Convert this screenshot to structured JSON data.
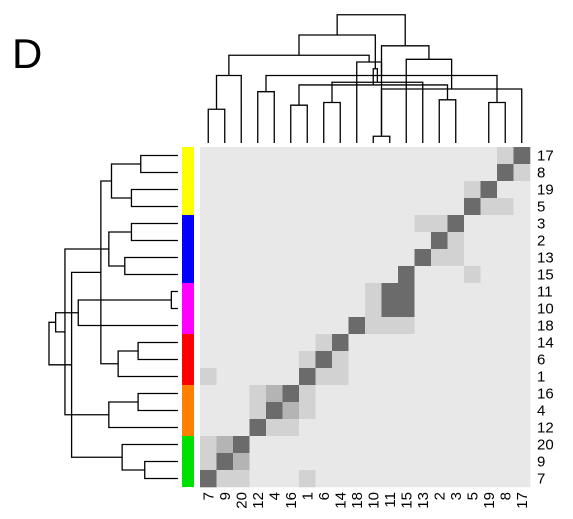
{
  "panel_label": "D",
  "chart_data": {
    "type": "heatmap",
    "title": "",
    "row_labels": [
      "17",
      "8",
      "19",
      "5",
      "3",
      "2",
      "13",
      "15",
      "11",
      "10",
      "18",
      "14",
      "6",
      "1",
      "16",
      "4",
      "12",
      "20",
      "9",
      "7"
    ],
    "col_labels": [
      "7",
      "9",
      "20",
      "12",
      "4",
      "16",
      "1",
      "6",
      "14",
      "18",
      "10",
      "11",
      "15",
      "13",
      "2",
      "3",
      "5",
      "19",
      "8",
      "17"
    ],
    "row_groups": [
      {
        "color": "#ffff00",
        "rows": 4
      },
      {
        "color": "#0000ff",
        "rows": 4
      },
      {
        "color": "#ff00ff",
        "rows": 3
      },
      {
        "color": "#ff0000",
        "rows": 3
      },
      {
        "color": "#ff8000",
        "rows": 3
      },
      {
        "color": "#00e000",
        "rows": 3
      }
    ],
    "value_range": [
      0,
      1
    ],
    "colors": {
      "background": "#e8e8e8",
      "light": "#d2d2d2",
      "mid": "#b4b4b4",
      "dark": "#6b6b6b"
    },
    "values": [
      [
        0,
        0,
        0,
        0,
        0,
        0,
        0,
        0,
        0,
        0,
        0,
        0,
        0,
        0,
        0,
        0,
        0,
        0,
        0.2,
        1
      ],
      [
        0,
        0,
        0,
        0,
        0,
        0,
        0,
        0,
        0,
        0,
        0,
        0,
        0,
        0,
        0,
        0,
        0,
        0,
        1,
        0.2
      ],
      [
        0,
        0,
        0,
        0,
        0,
        0,
        0,
        0,
        0,
        0,
        0,
        0,
        0,
        0,
        0,
        0,
        0.2,
        1,
        0,
        0
      ],
      [
        0,
        0,
        0,
        0,
        0,
        0,
        0,
        0,
        0,
        0,
        0,
        0,
        0,
        0,
        0,
        0,
        1,
        0.2,
        0.1,
        0
      ],
      [
        0,
        0,
        0,
        0,
        0,
        0,
        0,
        0,
        0,
        0,
        0,
        0,
        0,
        0.1,
        0.1,
        1,
        0,
        0,
        0,
        0
      ],
      [
        0,
        0,
        0,
        0,
        0,
        0,
        0,
        0,
        0,
        0,
        0,
        0,
        0,
        0,
        1,
        0.2,
        0,
        0,
        0,
        0
      ],
      [
        0,
        0,
        0,
        0,
        0,
        0,
        0,
        0,
        0,
        0,
        0,
        0,
        0,
        1,
        0.1,
        0.1,
        0,
        0,
        0,
        0
      ],
      [
        0,
        0,
        0,
        0,
        0,
        0,
        0,
        0,
        0,
        0,
        0,
        0,
        1,
        0,
        0,
        0,
        0.1,
        0,
        0,
        0
      ],
      [
        0,
        0,
        0,
        0,
        0,
        0,
        0,
        0,
        0,
        0,
        0.1,
        1,
        1,
        0,
        0,
        0,
        0,
        0,
        0,
        0
      ],
      [
        0,
        0,
        0,
        0,
        0,
        0,
        0,
        0,
        0,
        0,
        0.1,
        1,
        1,
        0,
        0,
        0,
        0,
        0,
        0,
        0
      ],
      [
        0,
        0,
        0,
        0,
        0,
        0,
        0,
        0,
        0,
        1,
        0.1,
        0.1,
        0.1,
        0,
        0,
        0,
        0,
        0,
        0,
        0
      ],
      [
        0,
        0,
        0,
        0,
        0,
        0,
        0,
        0.1,
        1,
        0,
        0,
        0,
        0,
        0,
        0,
        0,
        0,
        0,
        0,
        0
      ],
      [
        0,
        0,
        0,
        0,
        0,
        0,
        0.1,
        1,
        0.2,
        0,
        0,
        0,
        0,
        0,
        0,
        0,
        0,
        0,
        0,
        0
      ],
      [
        0.1,
        0,
        0,
        0,
        0,
        0,
        1,
        0.1,
        0.1,
        0,
        0,
        0,
        0,
        0,
        0,
        0,
        0,
        0,
        0,
        0
      ],
      [
        0,
        0,
        0,
        0.2,
        0.4,
        1,
        0.1,
        0,
        0,
        0,
        0,
        0,
        0,
        0,
        0,
        0,
        0,
        0,
        0,
        0
      ],
      [
        0,
        0,
        0,
        0.1,
        1,
        0.4,
        0.1,
        0,
        0,
        0,
        0,
        0,
        0,
        0,
        0,
        0,
        0,
        0,
        0,
        0
      ],
      [
        0,
        0,
        0,
        1,
        0.1,
        0.2,
        0,
        0,
        0,
        0,
        0,
        0,
        0,
        0,
        0,
        0,
        0,
        0,
        0,
        0
      ],
      [
        0.2,
        0.3,
        1,
        0,
        0,
        0,
        0,
        0,
        0,
        0,
        0,
        0,
        0,
        0,
        0,
        0,
        0,
        0,
        0,
        0
      ],
      [
        0.2,
        1,
        0.3,
        0,
        0,
        0,
        0,
        0,
        0,
        0,
        0,
        0,
        0,
        0,
        0,
        0,
        0,
        0,
        0,
        0
      ],
      [
        1,
        0.2,
        0.2,
        0,
        0,
        0,
        0.1,
        0,
        0,
        0,
        0,
        0,
        0,
        0,
        0,
        0,
        0,
        0,
        0,
        0
      ]
    ],
    "col_dendrogram": [
      [
        10,
        11,
        0.05
      ],
      [
        0,
        1,
        0.25
      ],
      [
        5,
        6,
        0.28
      ],
      [
        7,
        8,
        0.3
      ],
      [
        17,
        18,
        0.3
      ],
      [
        14,
        15,
        0.32
      ],
      [
        3,
        4,
        0.38
      ],
      [
        19,
        20,
        0.4
      ],
      [
        22,
        25,
        0.43
      ],
      [
        13,
        23,
        0.45
      ],
      [
        2,
        21,
        0.5
      ],
      [
        24,
        26,
        0.5
      ],
      [
        9,
        20,
        0.6
      ],
      [
        28,
        29,
        0.55
      ],
      [
        12,
        27,
        0.62
      ],
      [
        30,
        32,
        0.65
      ],
      [
        31,
        34,
        0.72
      ],
      [
        33,
        35,
        0.8
      ],
      [
        36,
        37,
        0.95
      ]
    ],
    "row_dendrogram": [
      [
        8,
        9,
        0.05
      ],
      [
        18,
        19,
        0.25
      ],
      [
        1,
        0,
        0.28
      ],
      [
        11,
        12,
        0.3
      ],
      [
        15,
        14,
        0.3
      ],
      [
        4,
        5,
        0.35
      ],
      [
        2,
        3,
        0.35
      ],
      [
        6,
        7,
        0.4
      ],
      [
        17,
        21,
        0.42
      ],
      [
        13,
        23,
        0.45
      ],
      [
        22,
        26,
        0.5
      ],
      [
        16,
        24,
        0.52
      ],
      [
        25,
        27,
        0.52
      ],
      [
        29,
        30,
        0.58
      ],
      [
        10,
        20,
        0.75
      ],
      [
        28,
        33,
        0.8
      ],
      [
        32,
        31,
        0.85
      ],
      [
        34,
        36,
        0.92
      ],
      [
        35,
        37,
        0.97
      ]
    ]
  }
}
